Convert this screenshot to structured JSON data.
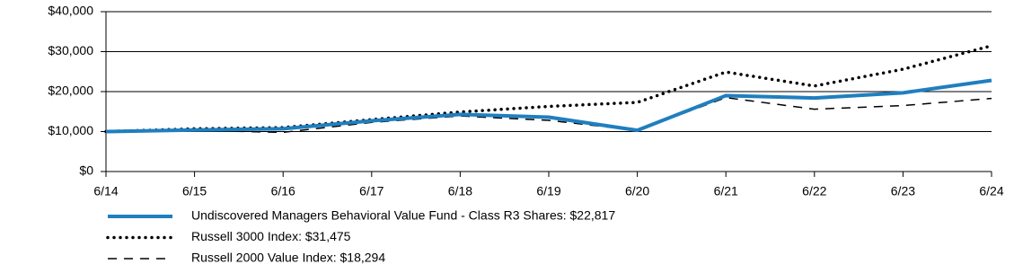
{
  "chart_data": {
    "type": "line",
    "categories": [
      "6/14",
      "6/15",
      "6/16",
      "6/17",
      "6/18",
      "6/19",
      "6/20",
      "6/21",
      "6/22",
      "6/23",
      "6/24"
    ],
    "series": [
      {
        "name": "Undiscovered Managers Behavioral Value Fund - Class R3 Shares: $22,817",
        "color": "#1f7fbf",
        "style": "solid",
        "values": [
          10000,
          10400,
          10700,
          12700,
          14300,
          13600,
          10300,
          19000,
          18400,
          19700,
          22817
        ]
      },
      {
        "name": "Russell 3000 Index: $31,475",
        "color": "#000000",
        "style": "dotted",
        "values": [
          10000,
          10700,
          11000,
          13000,
          14900,
          16300,
          17300,
          24900,
          21400,
          25600,
          31475
        ]
      },
      {
        "name": "Russell 2000 Value Index: $18,294",
        "color": "#000000",
        "style": "dashed",
        "values": [
          10000,
          10300,
          9800,
          12300,
          13900,
          12800,
          10300,
          18500,
          15600,
          16500,
          18294
        ]
      }
    ],
    "ylim": [
      0,
      40000
    ],
    "yticks": [
      {
        "value": 0,
        "label": "$0"
      },
      {
        "value": 10000,
        "label": "$10,000"
      },
      {
        "value": 20000,
        "label": "$20,000"
      },
      {
        "value": 30000,
        "label": "$30,000"
      },
      {
        "value": 40000,
        "label": "$40,000"
      }
    ],
    "grid": true
  }
}
